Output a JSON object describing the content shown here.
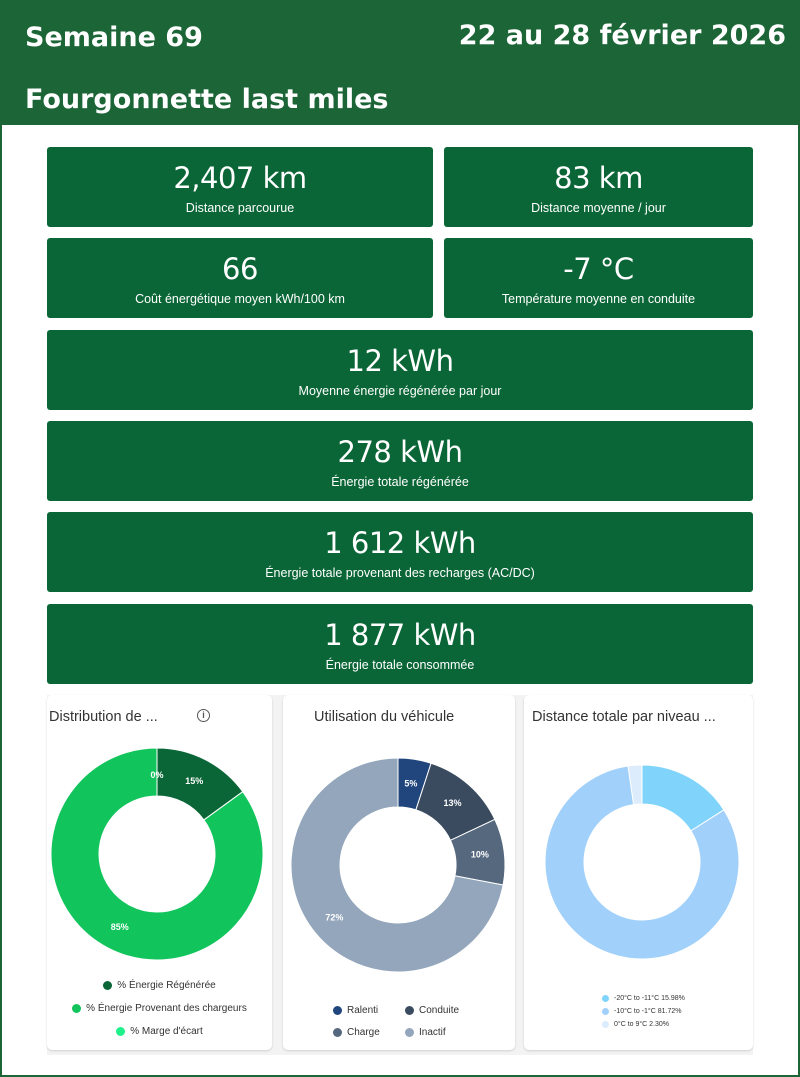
{
  "header": {
    "week": "Semaine 69",
    "dates": "22 au 28 février 2026",
    "title": "Fourgonnette last miles"
  },
  "kpis": [
    {
      "value": "2,407 km",
      "label": "Distance parcourue"
    },
    {
      "value": "83 km",
      "label": "Distance moyenne / jour"
    },
    {
      "value": "66",
      "label": "Coût énergétique moyen kWh/100 km"
    },
    {
      "value": "-7 °C",
      "label": "Température moyenne en conduite"
    },
    {
      "value": "12 kWh",
      "label": "Moyenne énergie régénérée par jour"
    },
    {
      "value": "278 kWh",
      "label": "Énergie totale régénérée"
    },
    {
      "value": "1 612 kWh",
      "label": "Énergie totale provenant des recharges (AC/DC)"
    },
    {
      "value": "1 877 kWh",
      "label": "Énergie totale consommée"
    }
  ],
  "chart_data": [
    {
      "type": "pie",
      "title": "Distribution de ...",
      "icon": "info-icon",
      "donut": true,
      "slices": [
        {
          "name": "% Énergie Régénérée",
          "value": 15,
          "label": "15%",
          "color": "#0b6637"
        },
        {
          "name": "% Énergie Provenant des chargeurs",
          "value": 85,
          "label": "85%",
          "color": "#12c45c"
        },
        {
          "name": "% Marge d'écart",
          "value": 0,
          "label": "0%",
          "color": "#1ef08a"
        }
      ]
    },
    {
      "type": "pie",
      "title": "Utilisation du véhicule",
      "donut": true,
      "slices": [
        {
          "name": "Ralenti",
          "value": 5,
          "label": "5%",
          "color": "#21467d"
        },
        {
          "name": "Conduite",
          "value": 13,
          "label": "13%",
          "color": "#3a4b60"
        },
        {
          "name": "Charge",
          "value": 10,
          "label": "10%",
          "color": "#56687e"
        },
        {
          "name": "Inactif",
          "value": 72,
          "label": "72%",
          "color": "#93a6bb"
        }
      ]
    },
    {
      "type": "pie",
      "title": "Distance totale par niveau ...",
      "donut": true,
      "slices": [
        {
          "name": "-20°C to -11°C 15.98%",
          "value": 15.98,
          "label": "",
          "color": "#80d4fb"
        },
        {
          "name": "-10°C to -1°C 81.72%",
          "value": 81.72,
          "label": "",
          "color": "#a1d0fa"
        },
        {
          "name": "0°C to 9°C 2.30%",
          "value": 2.3,
          "label": "",
          "color": "#dcecfc"
        }
      ]
    }
  ]
}
